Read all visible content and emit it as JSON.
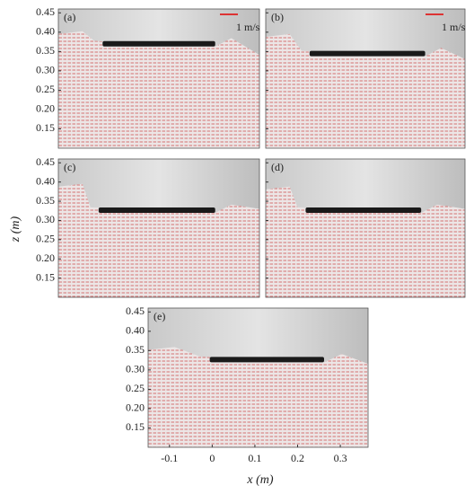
{
  "figure": {
    "y_label": "z (m)",
    "x_label": "x (m)",
    "ylim": [
      0.1,
      0.46
    ],
    "yticks": [
      0.15,
      {
        "value": 0.2,
        "label": "0.20"
      },
      0.25,
      {
        "value": 0.3,
        "label": "0.30"
      },
      0.35,
      {
        "value": 0.4,
        "label": "0.40"
      },
      0.45
    ],
    "xlim": [
      -0.15,
      0.365
    ],
    "xticks": [
      -0.1,
      0,
      0.1,
      0.2,
      0.3
    ],
    "panels": [
      {
        "label": "(a)",
        "scale_label": "1 m/s"
      },
      {
        "label": "(b)",
        "scale_label": "1 m/s"
      },
      {
        "label": "(c)"
      },
      {
        "label": "(d)"
      },
      {
        "label": "(e)"
      }
    ]
  }
}
